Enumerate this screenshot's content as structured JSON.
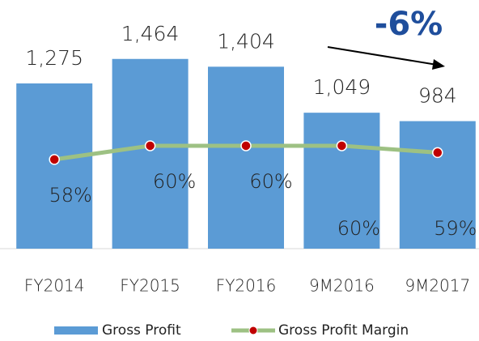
{
  "chart_data": {
    "type": "bar",
    "annotation": "-6%",
    "categories": [
      "FY2014",
      "FY2015",
      "FY2016",
      "9M2016",
      "9M2017"
    ],
    "series": [
      {
        "name": "Gross Profit",
        "type": "bar",
        "color": "#5b9bd5",
        "values": [
          1275,
          1464,
          1404,
          1049,
          984
        ],
        "value_labels": [
          "1,275",
          "1,464",
          "1,404",
          "1,049",
          "984"
        ]
      },
      {
        "name": "Gross Profit Margin",
        "type": "line",
        "axis": "y2",
        "color": "#9dc183",
        "marker_color": "#c00000",
        "values": [
          58,
          60,
          60,
          60,
          59
        ],
        "value_labels": [
          "58%",
          "60%",
          "60%",
          "60%",
          "59%"
        ]
      }
    ],
    "ylim": [
      0,
      1800
    ],
    "y2lim": [
      45,
      79
    ],
    "legend": "bottom"
  }
}
